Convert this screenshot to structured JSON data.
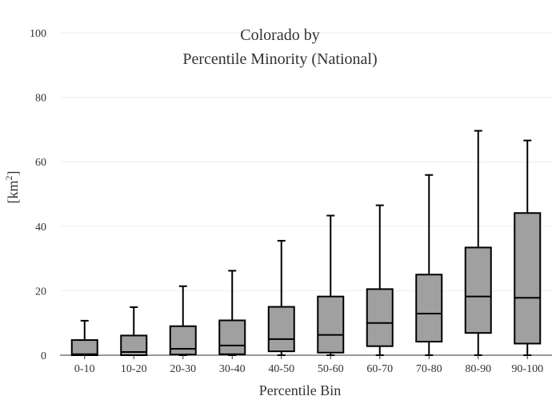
{
  "chart_data": {
    "type": "box",
    "title_line1": "Colorado  by",
    "title_line2": "Percentile Minority (National)",
    "xlabel": "Percentile Bin",
    "ylabel_base": "[km",
    "ylabel_sup": "2",
    "ylabel_close": "]",
    "ylim": [
      0,
      100
    ],
    "yticks": [
      0,
      20,
      40,
      60,
      80,
      100
    ],
    "grid": true,
    "categories": [
      "0-10",
      "10-20",
      "20-30",
      "30-40",
      "40-50",
      "50-60",
      "60-70",
      "70-80",
      "80-90",
      "90-100"
    ],
    "boxes": [
      {
        "min": 0,
        "q1": 0,
        "median": 0.3,
        "q3": 4.7,
        "max": 10.7
      },
      {
        "min": 0,
        "q1": 0,
        "median": 1.0,
        "q3": 6.1,
        "max": 14.9
      },
      {
        "min": 0,
        "q1": 0.2,
        "median": 2.0,
        "q3": 9.0,
        "max": 21.4
      },
      {
        "min": 0,
        "q1": 0.3,
        "median": 3.0,
        "q3": 10.8,
        "max": 26.2
      },
      {
        "min": 0,
        "q1": 1.2,
        "median": 5.0,
        "q3": 15.0,
        "max": 35.5
      },
      {
        "min": 0,
        "q1": 0.8,
        "median": 6.3,
        "q3": 18.2,
        "max": 43.3
      },
      {
        "min": 0,
        "q1": 2.8,
        "median": 10.0,
        "q3": 20.5,
        "max": 46.5
      },
      {
        "min": 0,
        "q1": 4.2,
        "median": 12.9,
        "q3": 25.0,
        "max": 55.9
      },
      {
        "min": 0,
        "q1": 6.9,
        "median": 18.2,
        "q3": 33.4,
        "max": 69.6
      },
      {
        "min": 0,
        "q1": 3.6,
        "median": 17.8,
        "q3": 44.1,
        "max": 66.6
      }
    ]
  }
}
